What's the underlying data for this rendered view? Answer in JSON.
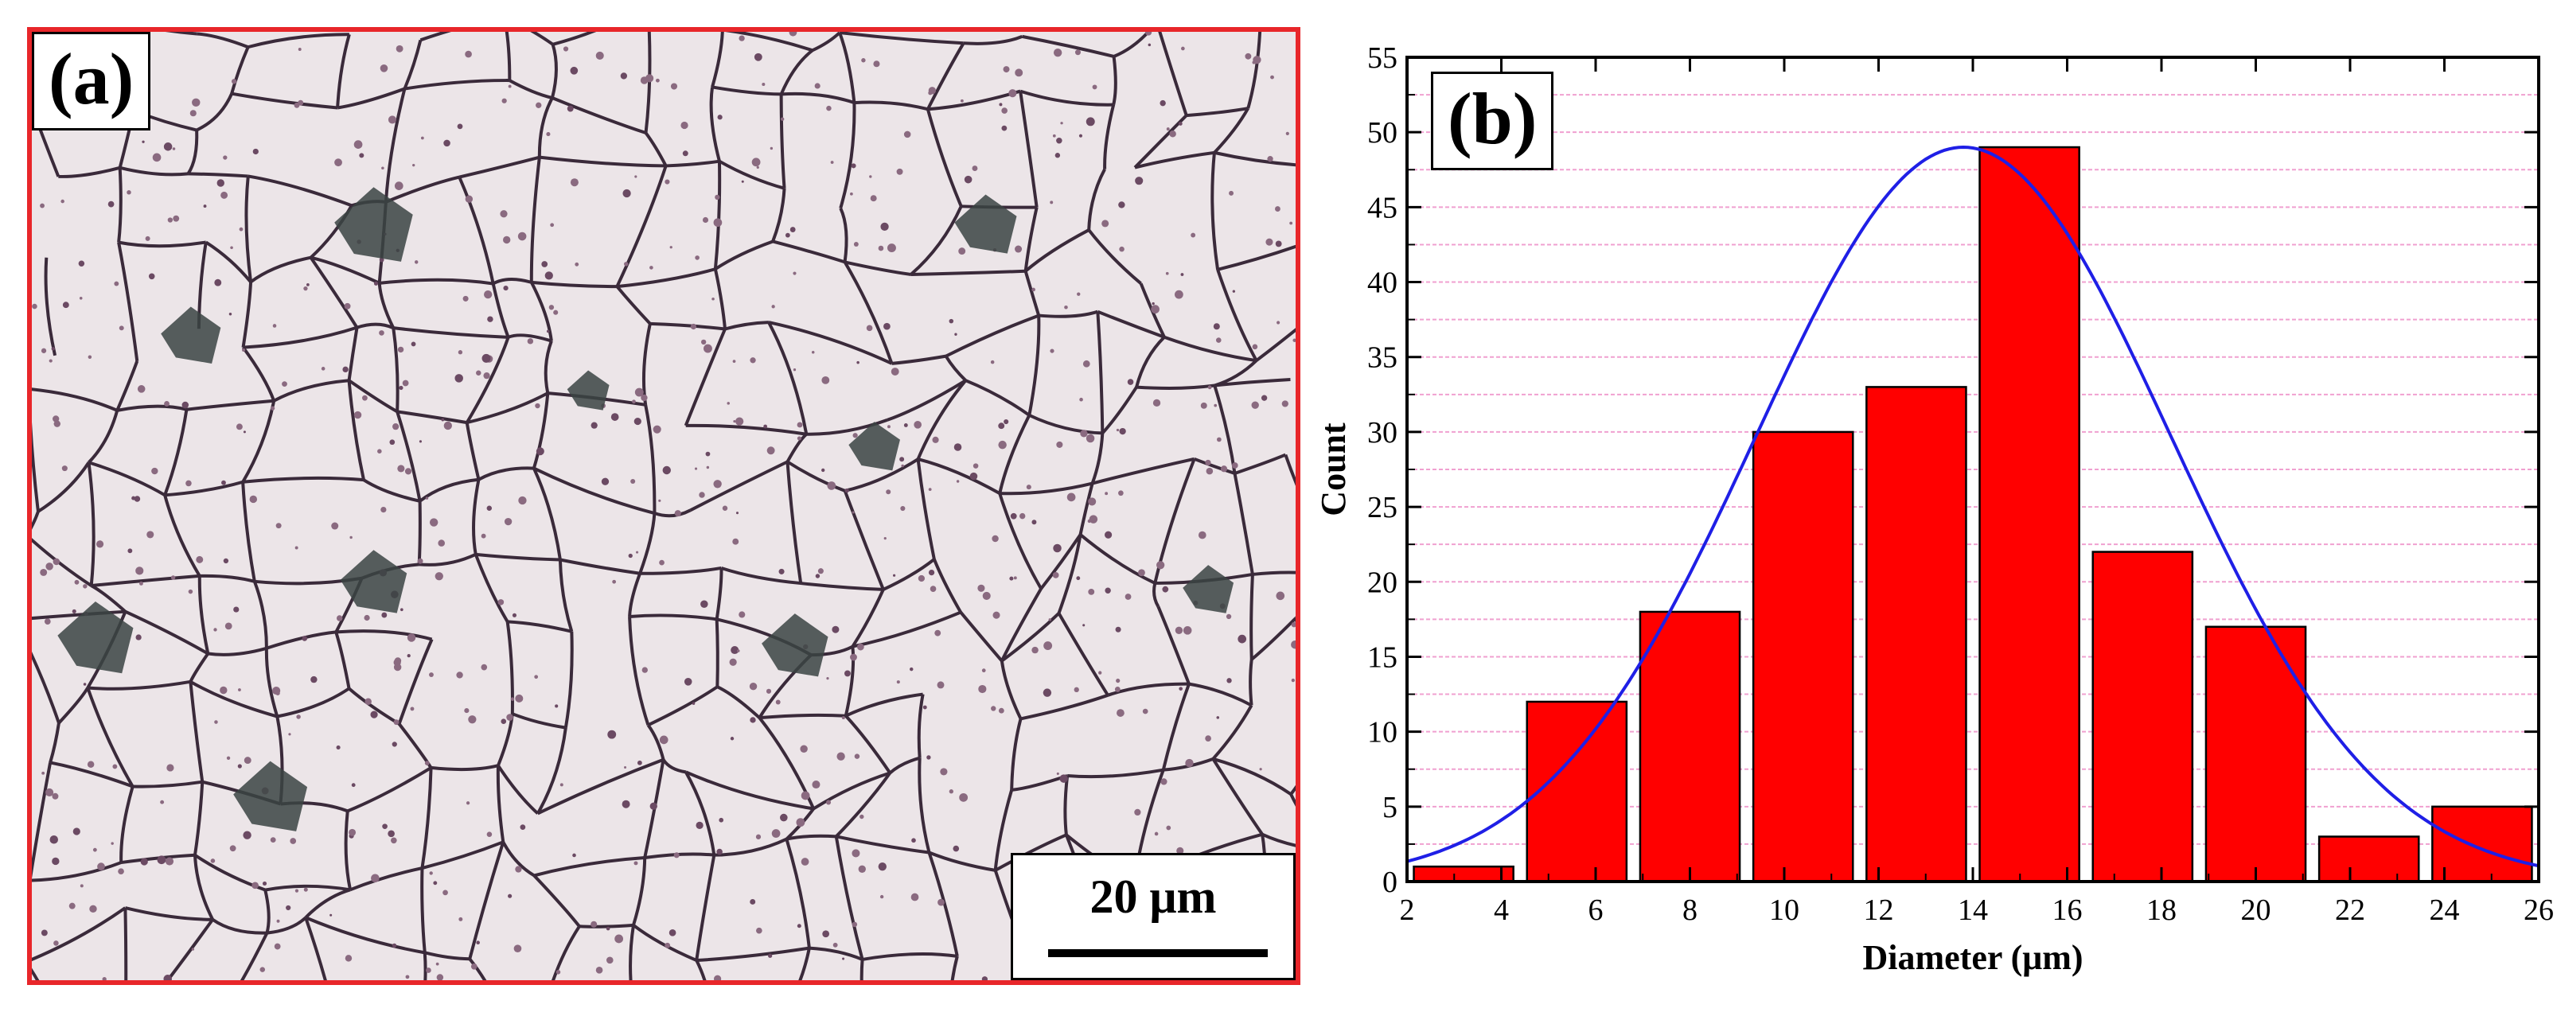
{
  "panel_a": {
    "label": "(a)",
    "scale_bar_text": "20 μm",
    "border_color": "#e8262a"
  },
  "panel_b": {
    "label": "(b)"
  },
  "colors": {
    "bar_fill": "#ff0000",
    "bar_stroke": "#000000",
    "curve": "#1f1fe6",
    "grid": "#f0a0d0"
  },
  "chart_data": {
    "type": "bar",
    "title": "",
    "xlabel": "Diameter (μm)",
    "ylabel": "Count",
    "xlim": [
      2,
      26
    ],
    "ylim": [
      0,
      55
    ],
    "xticks": [
      2,
      4,
      6,
      8,
      10,
      12,
      14,
      16,
      18,
      20,
      22,
      24,
      26
    ],
    "yticks": [
      0,
      5,
      10,
      15,
      20,
      25,
      30,
      35,
      40,
      45,
      50,
      55
    ],
    "grid": true,
    "bin_width": 2.4,
    "bin_centers": [
      3.2,
      5.6,
      8.0,
      10.4,
      12.8,
      15.2,
      17.6,
      20.0,
      22.4,
      24.8
    ],
    "values": [
      1,
      12,
      18,
      30,
      33,
      49,
      22,
      17,
      3,
      5
    ],
    "fit_curve": {
      "type": "gaussian",
      "peak": 49,
      "mean": 13.8,
      "sigma": 4.4
    }
  }
}
